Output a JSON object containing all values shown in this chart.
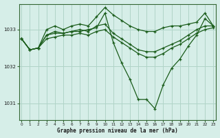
{
  "title": "Graphe pression niveau de la mer (hPa)",
  "bg_color": "#d6eee8",
  "grid_color": "#b0d4c8",
  "line_color": "#1a5c1a",
  "marker": "+",
  "ylim": [
    1030.55,
    1033.7
  ],
  "yticks": [
    1031,
    1032,
    1033
  ],
  "xlim": [
    -0.3,
    23.3
  ],
  "xticks": [
    0,
    1,
    2,
    3,
    4,
    5,
    6,
    7,
    8,
    9,
    10,
    11,
    12,
    13,
    14,
    15,
    16,
    17,
    18,
    19,
    20,
    21,
    22,
    23
  ],
  "series": [
    [
      1032.75,
      1032.45,
      1032.5,
      1033.0,
      1033.1,
      1033.0,
      1033.1,
      1033.15,
      1033.1,
      1033.35,
      1033.6,
      1033.4,
      1033.25,
      1033.1,
      1033.0,
      1032.95,
      1032.95,
      1033.05,
      1033.1,
      1033.1,
      1033.15,
      1033.2,
      1033.45,
      1033.1
    ],
    [
      1032.75,
      1032.45,
      1032.5,
      1032.85,
      1032.95,
      1032.9,
      1032.95,
      1033.0,
      1032.95,
      1033.1,
      1033.15,
      1032.9,
      1032.75,
      1032.6,
      1032.45,
      1032.4,
      1032.4,
      1032.5,
      1032.6,
      1032.7,
      1032.85,
      1033.0,
      1033.1,
      1033.1
    ],
    [
      1032.75,
      1032.45,
      1032.5,
      1032.75,
      1032.8,
      1032.85,
      1032.85,
      1032.9,
      1032.85,
      1032.95,
      1033.0,
      1032.8,
      1032.65,
      1032.5,
      1032.35,
      1032.25,
      1032.25,
      1032.35,
      1032.5,
      1032.6,
      1032.75,
      1032.9,
      1033.0,
      1033.05
    ],
    [
      1032.75,
      1032.45,
      1032.5,
      1032.85,
      1032.9,
      1032.9,
      1032.95,
      1032.95,
      1033.0,
      1033.05,
      1033.45,
      1032.65,
      1032.1,
      1031.65,
      1031.1,
      1031.1,
      1030.85,
      1031.5,
      1031.95,
      1032.2,
      1032.55,
      1032.85,
      1033.3,
      1033.1
    ]
  ]
}
